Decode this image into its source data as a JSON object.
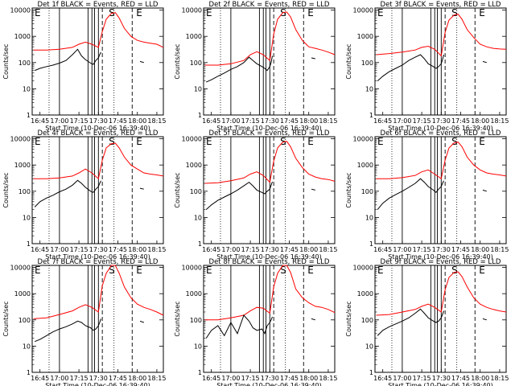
{
  "colors": {
    "events": "#000000",
    "lld": "#ff0000",
    "background": "#ffffff"
  },
  "panel_titles": [
    "Det 1f BLACK = Events, RED = LLD",
    "Det 2f BLACK = Events, RED = LLD",
    "Det 3f BLACK = Events, RED = LLD",
    "Det 4f BLACK = Events, RED = LLD",
    "Det 5f BLACK = Events, RED = LLD",
    "Det 6f BLACK = Events, RED = LLD",
    "Det 7f BLACK = Events, RED = LLD",
    "Det 8f BLACK = Events, RED = LLD",
    "Det 9f BLACK = Events, RED = LLD"
  ],
  "common": {
    "xlabel": "Start Time (10-Dec-06 16:39:40)",
    "ylabel": "Counts/sec",
    "x_tick_labels": [
      "16:45",
      "17:00",
      "17:15",
      "17:30",
      "17:45",
      "18:00",
      "18:15"
    ],
    "y_tick_labels": [
      "1",
      "10",
      "100",
      "1000",
      "10000"
    ],
    "markers": [
      "E",
      "S",
      "E"
    ]
  },
  "chart_data": {
    "type": "line",
    "y_scale": "log",
    "ylim": [
      1,
      12000
    ],
    "xlim": [
      "16:39",
      "18:20"
    ],
    "xlabel": "Start Time (10-Dec-06 16:39:40)",
    "ylabel": "Counts/sec",
    "series_names": [
      "Events",
      "LLD"
    ],
    "vertical_lines": {
      "solid": [
        "17:00",
        "17:22",
        "17:25",
        "17:27",
        "17:30"
      ],
      "dotted": [
        "16:52",
        "17:42"
      ],
      "dashed": [
        "17:33",
        "17:56"
      ]
    },
    "lld_time": [
      "16:40",
      "16:50",
      "17:00",
      "17:10",
      "17:15",
      "17:20",
      "17:25",
      "17:30",
      "17:33",
      "17:36",
      "17:40",
      "17:43",
      "17:46",
      "17:50",
      "17:55",
      "18:00",
      "18:05",
      "18:10",
      "18:15",
      "18:20"
    ],
    "events_time": [
      "16:41",
      "16:45",
      "16:50",
      "16:55",
      "17:00",
      "17:05",
      "17:10",
      "17:14",
      "17:17",
      "17:20",
      "17:24",
      "17:26",
      "17:28",
      "17:30",
      "17:31",
      "17:32",
      "18:02",
      "18:05"
    ],
    "panels": [
      {
        "lld": [
          300,
          300,
          320,
          380,
          500,
          600,
          500,
          380,
          1500,
          4500,
          7500,
          8000,
          5000,
          2000,
          1000,
          700,
          600,
          550,
          500,
          380
        ],
        "events": [
          50,
          60,
          70,
          80,
          95,
          120,
          200,
          320,
          180,
          130,
          95,
          85,
          120,
          150,
          200,
          250,
          110,
          100
        ]
      },
      {
        "lld": [
          80,
          80,
          90,
          120,
          200,
          260,
          200,
          120,
          1200,
          4500,
          8000,
          8500,
          5500,
          1800,
          700,
          400,
          350,
          300,
          250,
          200
        ],
        "events": [
          18,
          22,
          30,
          40,
          55,
          70,
          100,
          160,
          120,
          90,
          70,
          60,
          50,
          70,
          100,
          180,
          150,
          140
        ]
      },
      {
        "lld": [
          200,
          220,
          250,
          300,
          380,
          420,
          320,
          180,
          1400,
          4200,
          6500,
          7000,
          4500,
          1800,
          900,
          500,
          400,
          350,
          330,
          320
        ],
        "events": [
          20,
          30,
          45,
          60,
          80,
          120,
          160,
          200,
          140,
          90,
          70,
          60,
          70,
          90,
          130,
          200,
          110,
          100
        ]
      },
      {
        "lld": [
          300,
          300,
          320,
          380,
          500,
          700,
          500,
          300,
          1500,
          4500,
          6500,
          6800,
          4500,
          2000,
          1000,
          700,
          500,
          450,
          420,
          380
        ],
        "events": [
          25,
          40,
          55,
          70,
          95,
          120,
          170,
          260,
          200,
          140,
          100,
          90,
          120,
          150,
          200,
          250,
          130,
          120
        ]
      },
      {
        "lld": [
          200,
          210,
          250,
          320,
          450,
          550,
          400,
          220,
          1400,
          4500,
          7500,
          8000,
          5000,
          1800,
          800,
          450,
          350,
          300,
          280,
          240
        ],
        "events": [
          20,
          30,
          45,
          60,
          80,
          110,
          160,
          220,
          160,
          110,
          90,
          80,
          100,
          120,
          170,
          230,
          120,
          110
        ]
      },
      {
        "lld": [
          300,
          300,
          330,
          400,
          550,
          650,
          450,
          300,
          1500,
          4500,
          7000,
          7500,
          5000,
          2000,
          1000,
          650,
          500,
          450,
          420,
          380
        ],
        "events": [
          20,
          35,
          55,
          75,
          100,
          140,
          200,
          300,
          220,
          150,
          110,
          90,
          120,
          150,
          200,
          250,
          110,
          100
        ]
      },
      {
        "lld": [
          110,
          120,
          160,
          220,
          300,
          380,
          300,
          200,
          2000,
          6000,
          12000,
          12000,
          6000,
          1800,
          700,
          400,
          300,
          250,
          200,
          150
        ],
        "events": [
          15,
          18,
          25,
          35,
          45,
          55,
          70,
          90,
          80,
          60,
          50,
          40,
          45,
          60,
          80,
          110,
          90,
          80
        ]
      },
      {
        "lld": [
          100,
          100,
          120,
          150,
          220,
          300,
          280,
          180,
          1800,
          6000,
          12000,
          12000,
          6500,
          1500,
          700,
          450,
          330,
          300,
          250,
          190
        ],
        "events": [
          20,
          40,
          60,
          25,
          80,
          30,
          150,
          90,
          50,
          40,
          45,
          30,
          60,
          80,
          100,
          130,
          110,
          100
        ]
      },
      {
        "lld": [
          150,
          160,
          200,
          250,
          330,
          400,
          300,
          200,
          1400,
          4200,
          6500,
          6800,
          4500,
          1800,
          700,
          400,
          300,
          250,
          220,
          200
        ],
        "events": [
          25,
          40,
          55,
          70,
          90,
          120,
          180,
          260,
          180,
          120,
          90,
          80,
          90,
          120,
          160,
          220,
          110,
          100
        ]
      }
    ]
  }
}
